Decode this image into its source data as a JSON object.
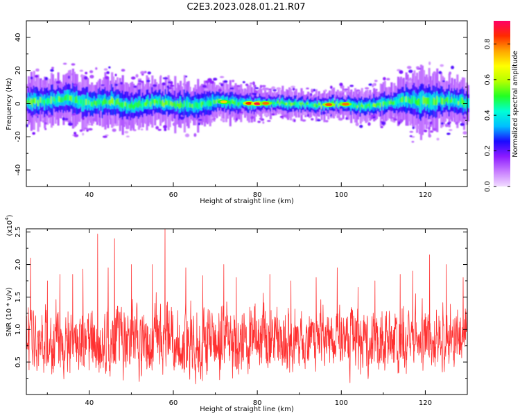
{
  "chart_data": [
    {
      "type": "heatmap",
      "title": "C2E3.2023.028.01.21.R07",
      "xlabel": "Height of straight line (km)",
      "ylabel": "Frequency (Hz)",
      "xlim": [
        25,
        130
      ],
      "ylim": [
        -50,
        50
      ],
      "xticks": [
        40,
        60,
        80,
        100,
        120
      ],
      "yticks": [
        40,
        20,
        0,
        -20,
        -40
      ],
      "colorbar": {
        "label": "Normalized spectral amplitude",
        "ticks": [
          "0.0",
          "0.2",
          "0.4",
          "0.6",
          "0.8"
        ],
        "range": [
          0,
          0.93
        ],
        "colors": [
          "#f2ddff",
          "#c77cff",
          "#8c1aff",
          "#1a0aff",
          "#00bfff",
          "#00ffd5",
          "#22ff22",
          "#b6ff00",
          "#ffff00",
          "#ffa500",
          "#ff2a00",
          "#ff0066"
        ]
      },
      "centerline": {
        "x": [
          25,
          30,
          35,
          40,
          45,
          50,
          55,
          60,
          65,
          70,
          75,
          80,
          85,
          90,
          95,
          100,
          105,
          110,
          115,
          120,
          125,
          130
        ],
        "y": [
          1,
          1.5,
          3,
          0,
          1.5,
          -1.5,
          1,
          -0.5,
          -1,
          1.5,
          0.5,
          0,
          0.5,
          -0.5,
          -1,
          0,
          -1.5,
          0.5,
          2,
          1,
          2,
          0.5
        ]
      },
      "halfwidth": {
        "x": [
          25,
          35,
          45,
          55,
          65,
          75,
          85,
          95,
          105,
          112,
          118,
          125,
          130
        ],
        "y": [
          7,
          8,
          8,
          7,
          7,
          5,
          4,
          4,
          5,
          6,
          10,
          8,
          7
        ]
      },
      "peaks": {
        "x": [
          72,
          78,
          80,
          82,
          97,
          101
        ],
        "amp": [
          0.72,
          0.85,
          0.9,
          0.8,
          0.82,
          0.8
        ]
      }
    },
    {
      "type": "line",
      "xlabel": "Height of straight line (km)",
      "ylabel": "SNR (10 * v/v)",
      "scale_label": "(x10",
      "scale_exp": "4",
      "scale_close": ")",
      "xlim": [
        25,
        130
      ],
      "ylim": [
        0,
        2.55
      ],
      "xticks": [
        40,
        60,
        80,
        100,
        120
      ],
      "yticks": [
        0.5,
        1.0,
        1.5,
        2.0,
        2.5
      ],
      "ytick_labels": [
        "0.5",
        "1.0",
        "1.5",
        "2.0",
        "2.5"
      ],
      "color": "#ff3030",
      "mean": 0.82,
      "spikes": {
        "x": [
          26,
          30,
          33,
          36,
          38.5,
          42,
          44.5,
          46,
          50,
          55,
          58,
          63,
          67,
          72,
          75,
          83,
          88,
          94,
          99,
          104,
          108,
          114,
          117,
          121,
          125,
          129
        ],
        "y": [
          2.1,
          1.75,
          1.85,
          1.85,
          1.93,
          2.47,
          1.95,
          2.4,
          2.0,
          2.0,
          2.55,
          1.95,
          1.83,
          2.0,
          1.8,
          1.85,
          1.75,
          1.8,
          1.95,
          1.65,
          1.75,
          1.85,
          1.9,
          2.15,
          2.0,
          1.8
        ]
      }
    }
  ]
}
